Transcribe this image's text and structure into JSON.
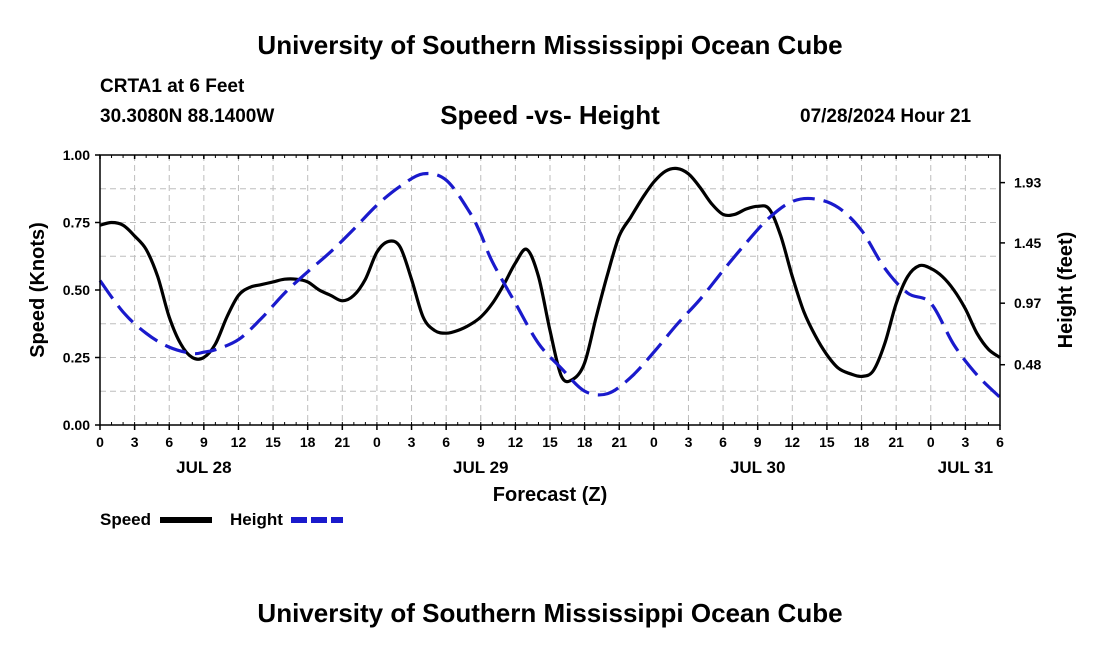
{
  "header": {
    "title": "University of Southern Mississippi Ocean Cube",
    "station": "CRTA1 at 6 Feet",
    "coords": "30.3080N  88.1400W",
    "subtitle": "Speed -vs- Height",
    "datetime": "07/28/2024 Hour 21"
  },
  "footer": {
    "title": "University of Southern Mississippi Ocean Cube"
  },
  "chart_data": {
    "type": "line",
    "title": "Speed -vs- Height",
    "xlabel": "Forecast (Z)",
    "ylabel": "Speed (Knots)",
    "y2label": "Height (feet)",
    "xlim": [
      0,
      78
    ],
    "ylim": [
      0,
      1
    ],
    "y2lim": [
      0.0,
      2.15
    ],
    "x_ticks": [
      0,
      3,
      6,
      9,
      12,
      15,
      18,
      21,
      24,
      27,
      30,
      33,
      36,
      39,
      42,
      45,
      48,
      51,
      54,
      57,
      60,
      63,
      66,
      69,
      72,
      75,
      78
    ],
    "x_tick_labels": [
      "0",
      "3",
      "6",
      "9",
      "12",
      "15",
      "18",
      "21",
      "0",
      "3",
      "6",
      "9",
      "12",
      "15",
      "18",
      "21",
      "0",
      "3",
      "6",
      "9",
      "12",
      "15",
      "18",
      "21",
      "0",
      "3",
      "6"
    ],
    "day_labels": [
      {
        "x": 9,
        "label": "JUL 28"
      },
      {
        "x": 33,
        "label": "JUL 29"
      },
      {
        "x": 57,
        "label": "JUL 30"
      },
      {
        "x": 75,
        "label": "JUL 31"
      }
    ],
    "y_ticks": [
      0.0,
      0.25,
      0.5,
      0.75,
      1.0
    ],
    "y_tick_labels": [
      "0.00",
      "0.25",
      "0.50",
      "0.75",
      "1.00"
    ],
    "y2_ticks": [
      0.48,
      0.97,
      1.45,
      1.93
    ],
    "y2_tick_labels": [
      "0.48",
      "0.97",
      "1.45",
      "1.93"
    ],
    "grid": true,
    "legend": [
      {
        "name": "Speed",
        "color": "#000000",
        "dash": "solid"
      },
      {
        "name": "Height",
        "color": "#1a1acc",
        "dash": "dashed"
      }
    ],
    "series": [
      {
        "name": "Speed",
        "axis": "left",
        "x": [
          0,
          1,
          2,
          3,
          4,
          5,
          6,
          7,
          8,
          9,
          10,
          11,
          12,
          13,
          14,
          15,
          16,
          17,
          18,
          19,
          20,
          21,
          22,
          23,
          24,
          25,
          26,
          27,
          28,
          29,
          30,
          31,
          32,
          33,
          34,
          35,
          36,
          37,
          38,
          39,
          40,
          41,
          42,
          43,
          44,
          45,
          46,
          47,
          48,
          49,
          50,
          51,
          52,
          53,
          54,
          55,
          56,
          57,
          58,
          59,
          60,
          61,
          62,
          63,
          64,
          65,
          66,
          67,
          68,
          69,
          70,
          71,
          72,
          73,
          74,
          75,
          76,
          77,
          78
        ],
        "values": [
          0.74,
          0.75,
          0.74,
          0.7,
          0.65,
          0.55,
          0.4,
          0.3,
          0.25,
          0.25,
          0.3,
          0.4,
          0.48,
          0.51,
          0.52,
          0.53,
          0.54,
          0.54,
          0.53,
          0.5,
          0.48,
          0.46,
          0.48,
          0.54,
          0.64,
          0.68,
          0.66,
          0.54,
          0.4,
          0.35,
          0.34,
          0.35,
          0.37,
          0.4,
          0.45,
          0.52,
          0.6,
          0.65,
          0.55,
          0.35,
          0.18,
          0.17,
          0.23,
          0.4,
          0.56,
          0.7,
          0.77,
          0.84,
          0.9,
          0.94,
          0.95,
          0.93,
          0.88,
          0.82,
          0.78,
          0.78,
          0.8,
          0.81,
          0.8,
          0.7,
          0.55,
          0.42,
          0.33,
          0.26,
          0.21,
          0.19,
          0.18,
          0.2,
          0.3,
          0.45,
          0.55,
          0.59,
          0.58,
          0.55,
          0.5,
          0.43,
          0.34,
          0.28,
          0.25
        ]
      },
      {
        "name": "Height",
        "axis": "right",
        "x": [
          0,
          2,
          4,
          6,
          8,
          9,
          10,
          12,
          14,
          16,
          18,
          20,
          22,
          24,
          26,
          28,
          30,
          32,
          33,
          34,
          36,
          38,
          40,
          42,
          44,
          46,
          48,
          50,
          52,
          54,
          56,
          58,
          60,
          62,
          64,
          66,
          68,
          70,
          72,
          74,
          76,
          78
        ],
        "values": [
          1.15,
          0.9,
          0.73,
          0.62,
          0.57,
          0.58,
          0.6,
          0.68,
          0.85,
          1.05,
          1.22,
          1.38,
          1.56,
          1.75,
          1.9,
          2.0,
          1.95,
          1.7,
          1.52,
          1.3,
          0.97,
          0.65,
          0.45,
          0.27,
          0.25,
          0.38,
          0.58,
          0.8,
          1.0,
          1.23,
          1.45,
          1.65,
          1.78,
          1.8,
          1.73,
          1.55,
          1.25,
          1.05,
          0.97,
          0.64,
          0.4,
          0.22
        ]
      }
    ]
  }
}
